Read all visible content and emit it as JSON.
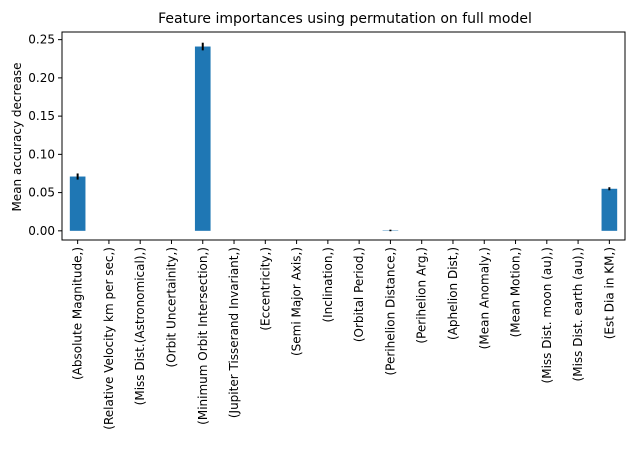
{
  "chart_data": {
    "type": "bar",
    "title": "Feature importances using permutation on full model",
    "xlabel": "",
    "ylabel": "Mean accuracy decrease",
    "ylim": [
      -0.012,
      0.26
    ],
    "yticks": [
      0.0,
      0.05,
      0.1,
      0.15,
      0.2,
      0.25
    ],
    "ytick_labels": [
      "0.00",
      "0.05",
      "0.10",
      "0.15",
      "0.20",
      "0.25"
    ],
    "grid": false,
    "legend": "none",
    "bar_color": "#1f77b4",
    "error_color": "#000000",
    "categories": [
      "(Absolute Magnitude,)",
      "(Relative Velocity km per sec,)",
      "(Miss Dist.(Astronomical),)",
      "(Orbit Uncertainity,)",
      "(Minimum Orbit Intersection,)",
      "(Jupiter Tisserand Invariant,)",
      "(Eccentricity,)",
      "(Semi Major Axis,)",
      "(Inclination,)",
      "(Orbital Period,)",
      "(Perihelion Distance,)",
      "(Perihelion Arg,)",
      "(Aphelion Dist,)",
      "(Mean Anomaly,)",
      "(Mean Motion,)",
      "(Miss Dist. moon (au),)",
      "(Miss Dist. earth (au),)",
      "(Est Dia in KM,)"
    ],
    "values": [
      0.071,
      0,
      0,
      0,
      0.241,
      0,
      0,
      0,
      0,
      0,
      0.0005,
      0,
      0,
      0,
      0,
      0,
      0,
      0.055
    ],
    "errors": [
      0.004,
      0,
      0,
      0,
      0.005,
      0,
      0,
      0,
      0,
      0,
      0.001,
      0,
      0,
      0,
      0,
      0,
      0,
      0.002
    ]
  }
}
